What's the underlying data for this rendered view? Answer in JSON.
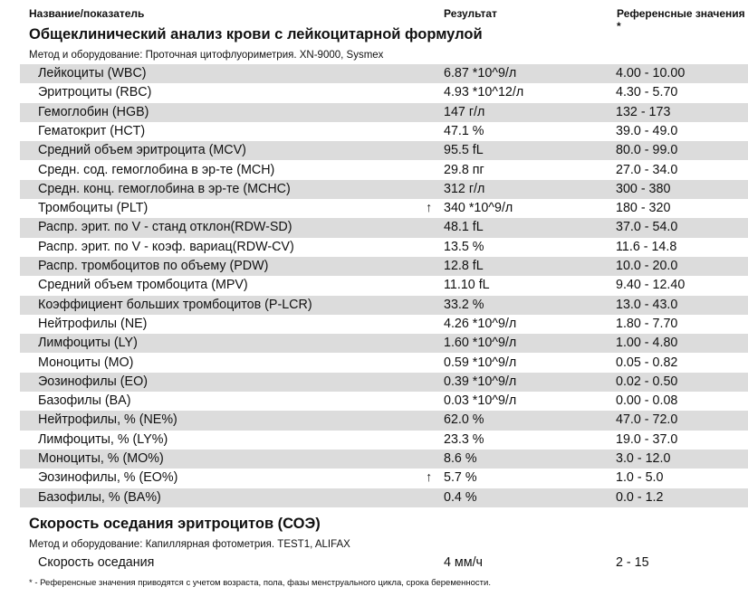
{
  "header": {
    "name": "Название/показатель",
    "result": "Результат",
    "reference": "Референсные значения *"
  },
  "sections": [
    {
      "title": "Общеклинический анализ крови с лейкоцитарной формулой",
      "method": "Метод и оборудование:  Проточная цитофлуориметрия. XN-9000, Sysmex",
      "rows": [
        {
          "name": "Лейкоциты (WBC)",
          "flag": "",
          "result": "6.87 *10^9/л",
          "ref": "4.00 - 10.00"
        },
        {
          "name": "Эритроциты (RBC)",
          "flag": "",
          "result": "4.93 *10^12/л",
          "ref": "4.30 - 5.70"
        },
        {
          "name": "Гемоглобин (HGB)",
          "flag": "",
          "result": "147 г/л",
          "ref": "132 - 173"
        },
        {
          "name": "Гематокрит (HCT)",
          "flag": "",
          "result": "47.1 %",
          "ref": "39.0 - 49.0"
        },
        {
          "name": "Средний объем эритроцита (MCV)",
          "flag": "",
          "result": "95.5 fL",
          "ref": "80.0 - 99.0"
        },
        {
          "name": "Средн. сод. гемоглобина в эр-те (MCH)",
          "flag": "",
          "result": "29.8 пг",
          "ref": "27.0 - 34.0"
        },
        {
          "name": "Средн. конц. гемоглобина в эр-те (MCHC)",
          "flag": "",
          "result": "312 г/л",
          "ref": "300 - 380"
        },
        {
          "name": "Тромбоциты (PLT)",
          "flag": "↑",
          "result": "340 *10^9/л",
          "ref": "180 - 320"
        },
        {
          "name": "Распр. эрит. по V - станд отклон(RDW-SD)",
          "flag": "",
          "result": "48.1 fL",
          "ref": "37.0 - 54.0"
        },
        {
          "name": "Распр. эрит. по V - коэф. вариац(RDW-CV)",
          "flag": "",
          "result": "13.5 %",
          "ref": "11.6 - 14.8"
        },
        {
          "name": "Распр. тромбоцитов по объему (PDW)",
          "flag": "",
          "result": "12.8 fL",
          "ref": "10.0 - 20.0"
        },
        {
          "name": "Средний объем тромбоцита (MPV)",
          "flag": "",
          "result": "11.10 fL",
          "ref": "9.40 - 12.40"
        },
        {
          "name": "Коэффициент больших тромбоцитов (P-LCR)",
          "flag": "",
          "result": "33.2 %",
          "ref": "13.0 - 43.0"
        },
        {
          "name": "Нейтрофилы (NE)",
          "flag": "",
          "result": "4.26 *10^9/л",
          "ref": "1.80 - 7.70"
        },
        {
          "name": "Лимфоциты (LY)",
          "flag": "",
          "result": "1.60 *10^9/л",
          "ref": "1.00 - 4.80"
        },
        {
          "name": "Моноциты (MO)",
          "flag": "",
          "result": "0.59 *10^9/л",
          "ref": "0.05 - 0.82"
        },
        {
          "name": "Эозинофилы (EO)",
          "flag": "",
          "result": "0.39 *10^9/л",
          "ref": "0.02 - 0.50"
        },
        {
          "name": "Базофилы (BA)",
          "flag": "",
          "result": "0.03 *10^9/л",
          "ref": "0.00 - 0.08"
        },
        {
          "name": "Нейтрофилы, % (NE%)",
          "flag": "",
          "result": "62.0 %",
          "ref": "47.0 - 72.0"
        },
        {
          "name": "Лимфоциты, % (LY%)",
          "flag": "",
          "result": "23.3 %",
          "ref": "19.0 - 37.0"
        },
        {
          "name": "Моноциты, % (MO%)",
          "flag": "",
          "result": "8.6 %",
          "ref": "3.0 - 12.0"
        },
        {
          "name": "Эозинофилы, % (EO%)",
          "flag": "↑",
          "result": "5.7 %",
          "ref": "1.0 - 5.0"
        },
        {
          "name": "Базофилы, % (BA%)",
          "flag": "",
          "result": "0.4 %",
          "ref": "0.0 - 1.2"
        }
      ]
    },
    {
      "title": "Скорость оседания эритроцитов (СОЭ)",
      "method": "Метод и оборудование:  Капиллярная фотометрия. TEST1, ALIFAX",
      "rows": [
        {
          "name": "Скорость оседания",
          "flag": "",
          "result": "4 мм/ч",
          "ref": "2 - 15"
        }
      ]
    }
  ],
  "footnote": "* - Референсные значения приводятся с учетом возраста, пола, фазы менструального цикла, срока беременности."
}
